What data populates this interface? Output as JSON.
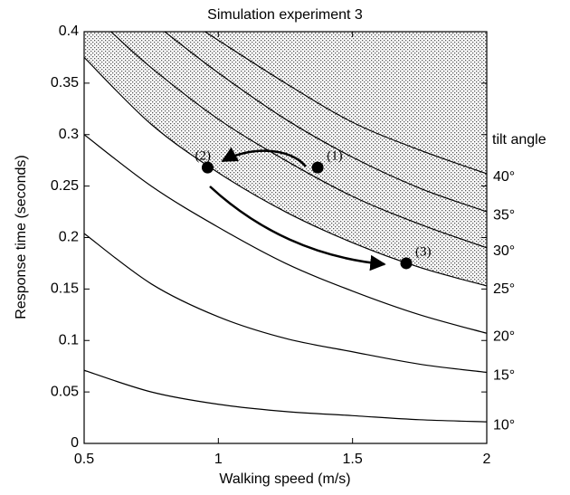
{
  "chart_data": {
    "type": "line",
    "title": "Simulation experiment 3",
    "x_label": "Walking speed (m/s)",
    "y_label": "Response time (seconds)",
    "legend_title": "tilt angle",
    "xlim": [
      0.5,
      2
    ],
    "ylim": [
      0,
      0.4
    ],
    "xticks": [
      0.5,
      1,
      1.5,
      2
    ],
    "yticks": [
      0,
      0.05,
      0.1,
      0.15,
      0.2,
      0.25,
      0.3,
      0.35,
      0.4
    ],
    "shaded_series": 3,
    "series": [
      {
        "name": "10°",
        "color": "#000000",
        "x": [
          0.5,
          0.75,
          1,
          1.25,
          1.5,
          1.75,
          2
        ],
        "values": [
          0.071,
          0.05,
          0.038,
          0.031,
          0.027,
          0.023,
          0.021
        ]
      },
      {
        "name": "15°",
        "color": "#000000",
        "x": [
          0.5,
          0.75,
          1,
          1.25,
          1.5,
          1.75,
          2
        ],
        "values": [
          0.204,
          0.155,
          0.123,
          0.102,
          0.089,
          0.077,
          0.069
        ]
      },
      {
        "name": "20°",
        "color": "#000000",
        "x": [
          0.5,
          0.75,
          1,
          1.25,
          1.5,
          1.75,
          2
        ],
        "values": [
          0.3,
          0.25,
          0.21,
          0.175,
          0.148,
          0.125,
          0.107
        ]
      },
      {
        "name": "25°",
        "color": "#000000",
        "x": [
          0.5,
          0.75,
          1,
          1.25,
          1.5,
          1.75,
          2
        ],
        "values": [
          0.375,
          0.31,
          0.263,
          0.225,
          0.195,
          0.171,
          0.153
        ]
      },
      {
        "name": "30°",
        "color": "#000000",
        "x": [
          0.6,
          0.75,
          1,
          1.25,
          1.5,
          1.75,
          2
        ],
        "values": [
          0.4,
          0.365,
          0.315,
          0.275,
          0.24,
          0.213,
          0.19
        ]
      },
      {
        "name": "35°",
        "color": "#000000",
        "x": [
          0.8,
          1,
          1.25,
          1.5,
          1.75,
          2
        ],
        "values": [
          0.4,
          0.36,
          0.315,
          0.278,
          0.248,
          0.225
        ]
      },
      {
        "name": "40°",
        "color": "#000000",
        "x": [
          0.95,
          1.25,
          1.5,
          1.75,
          2
        ],
        "values": [
          0.4,
          0.35,
          0.312,
          0.285,
          0.262
        ]
      }
    ],
    "points": {
      "labels": [
        "(1)",
        "(2)",
        "(3)"
      ],
      "x": [
        1.37,
        0.96,
        1.7
      ],
      "y": [
        0.268,
        0.268,
        0.175
      ],
      "color": "#000000"
    }
  }
}
